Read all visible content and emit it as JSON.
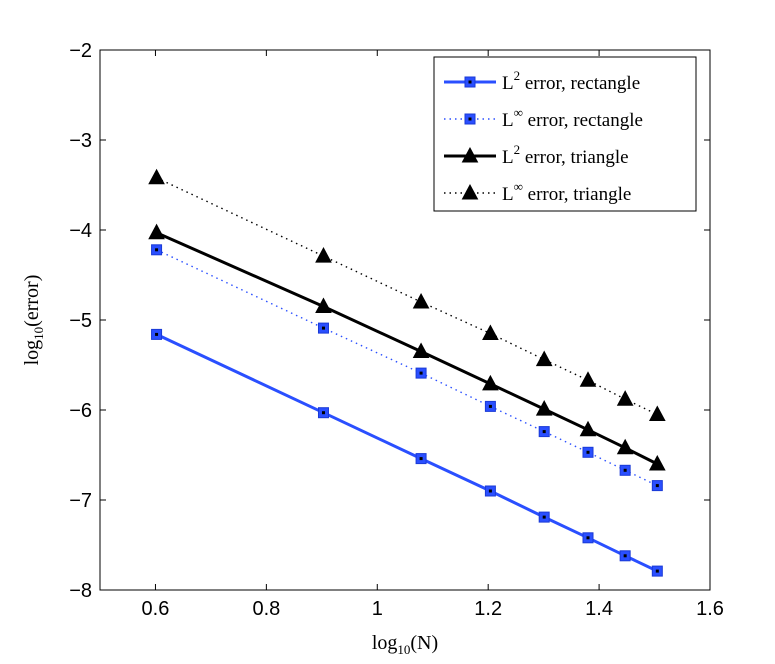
{
  "chart_data": {
    "type": "line",
    "title": "",
    "xlabel": "log10(N)",
    "ylabel": "log10(error)",
    "xlim": [
      0.5,
      1.6
    ],
    "ylim": [
      -8,
      -2
    ],
    "xticks": [
      0.6,
      0.8,
      1.0,
      1.2,
      1.4,
      1.6
    ],
    "xtick_labels": [
      "0.6",
      "0.8",
      "1",
      "1.2",
      "1.4",
      "1.6"
    ],
    "yticks": [
      -8,
      -7,
      -6,
      -5,
      -4,
      -3,
      -2
    ],
    "ytick_labels": [
      "−8",
      "−7",
      "−6",
      "−5",
      "−4",
      "−3",
      "−2"
    ],
    "x": [
      0.602,
      0.903,
      1.079,
      1.204,
      1.301,
      1.38,
      1.447,
      1.505
    ],
    "grid": false,
    "legend_position": "top-right",
    "series": [
      {
        "name": "L2 error, rectangle",
        "legend_base": "L",
        "legend_sup": "2",
        "legend_rest": " error, rectangle",
        "color": "#2a4fff",
        "line_style": "solid",
        "marker": "square",
        "values": [
          -5.16,
          -6.03,
          -6.54,
          -6.9,
          -7.19,
          -7.42,
          -7.62,
          -7.79
        ]
      },
      {
        "name": "L∞ error, rectangle",
        "legend_base": "L",
        "legend_sup": "∞",
        "legend_rest": " error, rectangle",
        "color": "#2a4fff",
        "line_style": "dotted",
        "marker": "square",
        "values": [
          -4.22,
          -5.09,
          -5.59,
          -5.96,
          -6.24,
          -6.47,
          -6.67,
          -6.84
        ]
      },
      {
        "name": "L2 error, triangle",
        "legend_base": "L",
        "legend_sup": "2",
        "legend_rest": " error, triangle",
        "color": "#000000",
        "line_style": "solid",
        "marker": "triangle",
        "values": [
          -4.03,
          -4.85,
          -5.35,
          -5.71,
          -5.99,
          -6.22,
          -6.42,
          -6.6
        ]
      },
      {
        "name": "L∞ error, triangle",
        "legend_base": "L",
        "legend_sup": "∞",
        "legend_rest": " error, triangle",
        "color": "#000000",
        "line_style": "dotted",
        "marker": "triangle",
        "values": [
          -3.42,
          -4.29,
          -4.8,
          -5.15,
          -5.44,
          -5.67,
          -5.88,
          -6.05
        ]
      }
    ]
  }
}
